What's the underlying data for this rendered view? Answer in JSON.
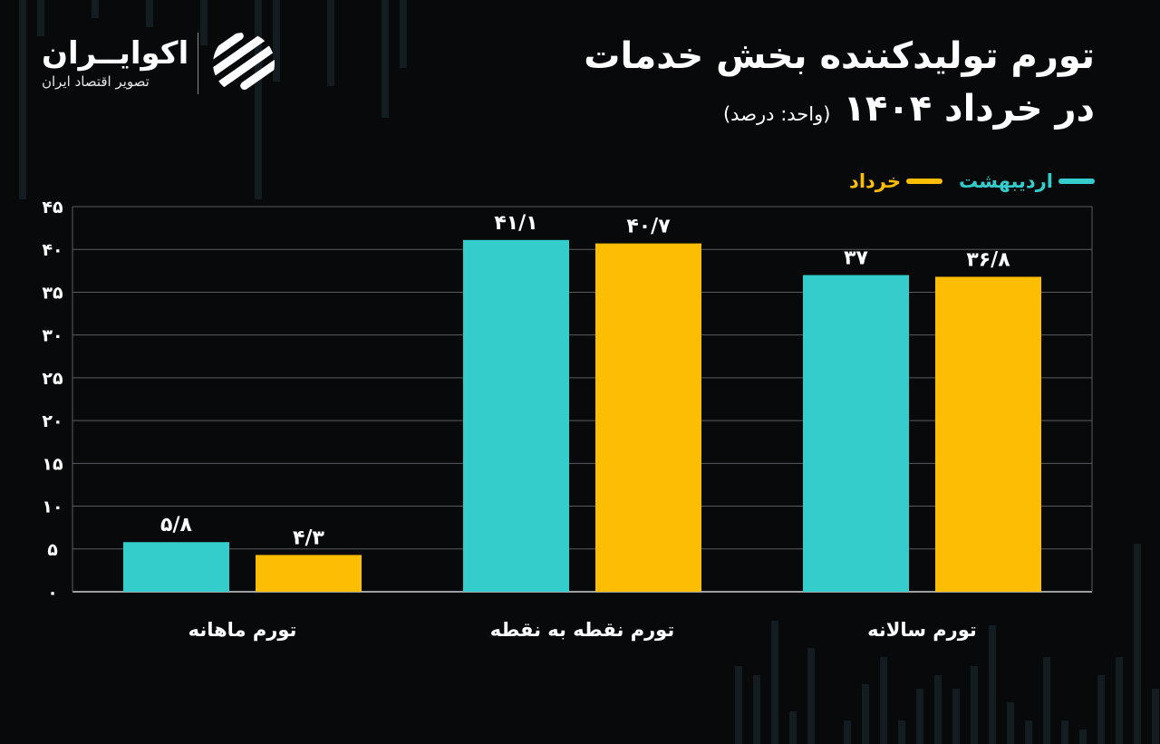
{
  "header": {
    "title_line1": "تورم تولیدکننده بخش خدمات",
    "title_line2": "در خرداد ۱۴۰۴",
    "unit_note": "(واحد: درصد)"
  },
  "logo": {
    "name": "اکوایــران",
    "tagline": "تصویر اقتصاد ایران",
    "icon": "ecoiran-stripes-logo-icon"
  },
  "colors": {
    "background": "#07090b",
    "ordibehesht": "#35cccc",
    "khordad": "#fdbd03",
    "grid": "#5a5d60",
    "axis": "#cfd2d4"
  },
  "chart_data": {
    "type": "bar",
    "title": "تورم تولیدکننده بخش خدمات در خرداد ۱۴۰۴",
    "subtitle": "(واحد: درصد)",
    "xlabel": "",
    "ylabel": "",
    "categories": [
      "تورم ماهانه",
      "تورم نقطه به نقطه",
      "تورم سالانه"
    ],
    "series": [
      {
        "name": "اردیبهشت",
        "color": "#35cccc",
        "values": [
          5.8,
          41.1,
          37
        ],
        "labels": [
          "۵/۸",
          "۴۱/۱",
          "۳۷"
        ]
      },
      {
        "name": "خرداد",
        "color": "#fdbd03",
        "values": [
          4.3,
          40.7,
          36.8
        ],
        "labels": [
          "۴/۳",
          "۴۰/۷",
          "۳۶/۸"
        ]
      }
    ],
    "ylim": [
      0,
      45
    ],
    "yticks": [
      0,
      5,
      10,
      15,
      20,
      25,
      30,
      35,
      40,
      45
    ],
    "ytick_labels": [
      "۰",
      "۵",
      "۱۰",
      "۱۵",
      "۲۰",
      "۲۵",
      "۳۰",
      "۳۵",
      "۴۰",
      "۴۵"
    ],
    "grid": true,
    "legend_position": "top-right"
  }
}
